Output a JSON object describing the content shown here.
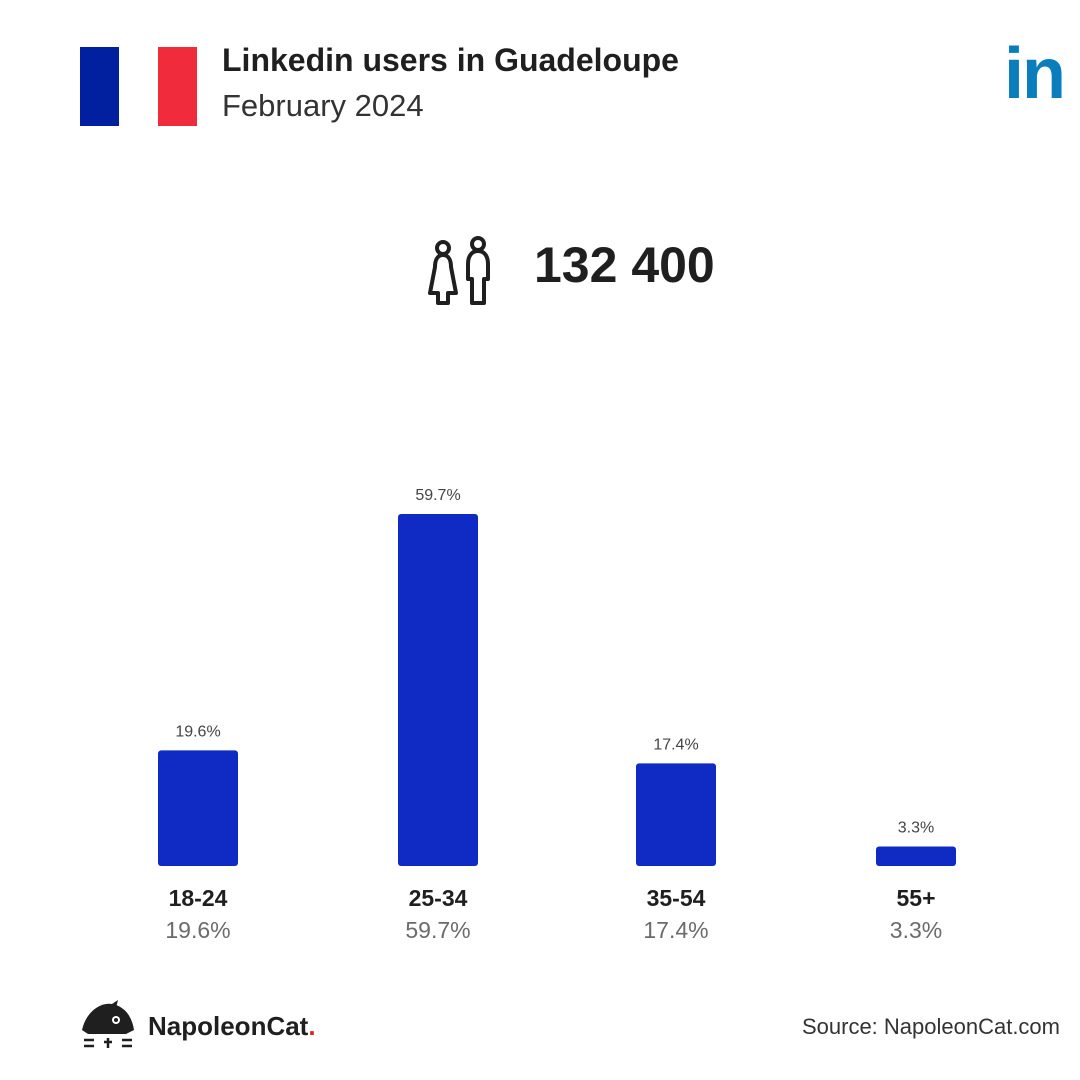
{
  "header": {
    "title": "Linkedin users in Guadeloupe",
    "subtitle": "February 2024",
    "flag_colors": [
      "#00209f",
      "#ffffff",
      "#ef2b3c"
    ],
    "brand_logo_text": "in",
    "brand_color": "#0a7dbd"
  },
  "total_users": {
    "icon": "users-icon",
    "value": "132 400"
  },
  "chart_data": {
    "type": "bar",
    "categories": [
      "18-24",
      "25-34",
      "35-54",
      "55+"
    ],
    "values": [
      19.6,
      59.7,
      17.4,
      3.3
    ],
    "value_labels": [
      "19.6%",
      "59.7%",
      "17.4%",
      "3.3%"
    ],
    "bar_color": "#0f2bc4",
    "ylim": [
      0,
      59.7
    ],
    "grid": false,
    "legend": "none"
  },
  "footer": {
    "brand_name": "NapoleonCat",
    "brand_dot": ".",
    "source": "Source: NapoleonCat.com"
  }
}
